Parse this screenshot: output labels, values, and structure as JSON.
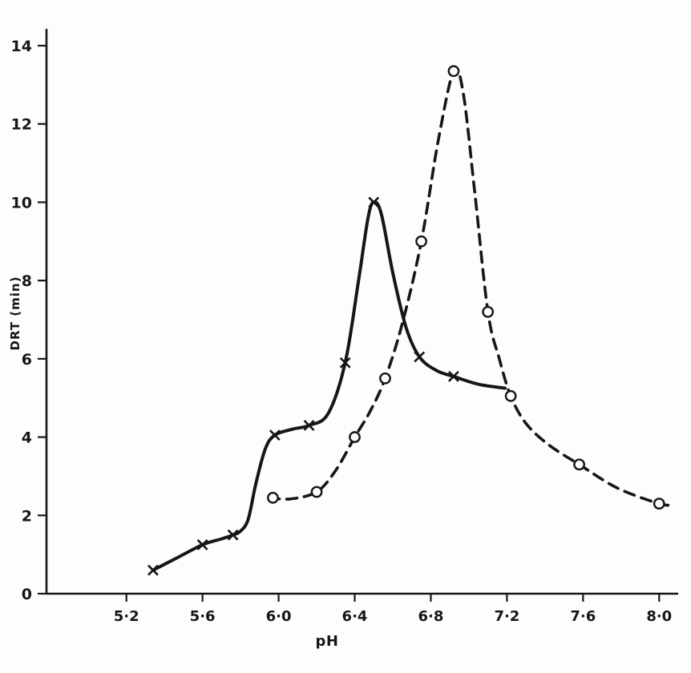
{
  "chart_data": {
    "type": "line",
    "title": "",
    "xlabel": "pH",
    "ylabel": "DRT (min)",
    "xlim": [
      4.78,
      8.1
    ],
    "ylim": [
      0,
      14
    ],
    "grid": false,
    "legend": "none",
    "x_ticks": [
      5.2,
      5.6,
      6.0,
      6.4,
      6.8,
      7.2,
      7.6,
      8.0
    ],
    "x_tick_labels": [
      "5·2",
      "5·6",
      "6·0",
      "6·4",
      "6·8",
      "7·2",
      "7·6",
      "8·0"
    ],
    "y_ticks": [
      0,
      2,
      4,
      6,
      8,
      10,
      12,
      14
    ],
    "y_tick_labels": [
      "0",
      "2",
      "4",
      "6",
      "8",
      "10",
      "12",
      "14"
    ],
    "colors": {
      "ink": "#161616",
      "background": "#fdfdfb"
    },
    "series": [
      {
        "name": "solid-x",
        "marker": "x",
        "line_style": "solid",
        "line_width": 4,
        "points": [
          [
            5.34,
            0.6
          ],
          [
            5.6,
            1.25
          ],
          [
            5.76,
            1.5
          ],
          [
            5.98,
            4.05
          ],
          [
            6.16,
            4.3
          ],
          [
            6.35,
            5.9
          ],
          [
            6.5,
            10.0
          ],
          [
            6.74,
            6.05
          ],
          [
            6.92,
            5.55
          ]
        ],
        "curve": [
          [
            5.34,
            0.6
          ],
          [
            5.46,
            0.9
          ],
          [
            5.6,
            1.25
          ],
          [
            5.7,
            1.4
          ],
          [
            5.76,
            1.5
          ],
          [
            5.8,
            1.6
          ],
          [
            5.84,
            1.9
          ],
          [
            5.88,
            2.8
          ],
          [
            5.93,
            3.7
          ],
          [
            5.98,
            4.05
          ],
          [
            6.07,
            4.2
          ],
          [
            6.16,
            4.3
          ],
          [
            6.26,
            4.6
          ],
          [
            6.35,
            5.9
          ],
          [
            6.42,
            8.0
          ],
          [
            6.47,
            9.6
          ],
          [
            6.5,
            10.0
          ],
          [
            6.54,
            9.7
          ],
          [
            6.6,
            8.2
          ],
          [
            6.67,
            6.8
          ],
          [
            6.74,
            6.05
          ],
          [
            6.83,
            5.7
          ],
          [
            6.92,
            5.55
          ],
          [
            7.05,
            5.35
          ],
          [
            7.19,
            5.25
          ]
        ]
      },
      {
        "name": "dashed-circle",
        "marker": "circle",
        "line_style": "dashed",
        "line_width": 3.6,
        "points": [
          [
            5.97,
            2.45
          ],
          [
            6.2,
            2.6
          ],
          [
            6.4,
            4.0
          ],
          [
            6.56,
            5.5
          ],
          [
            6.75,
            9.0
          ],
          [
            6.92,
            13.35
          ],
          [
            7.1,
            7.2
          ],
          [
            7.22,
            5.05
          ],
          [
            7.58,
            3.3
          ],
          [
            8.0,
            2.3
          ]
        ],
        "curve": [
          [
            5.95,
            2.45
          ],
          [
            6.06,
            2.42
          ],
          [
            6.2,
            2.6
          ],
          [
            6.3,
            3.15
          ],
          [
            6.4,
            4.0
          ],
          [
            6.48,
            4.65
          ],
          [
            6.56,
            5.5
          ],
          [
            6.65,
            6.9
          ],
          [
            6.75,
            9.0
          ],
          [
            6.84,
            11.6
          ],
          [
            6.92,
            13.35
          ],
          [
            6.97,
            12.8
          ],
          [
            7.03,
            10.3
          ],
          [
            7.1,
            7.2
          ],
          [
            7.16,
            6.0
          ],
          [
            7.22,
            5.05
          ],
          [
            7.3,
            4.35
          ],
          [
            7.42,
            3.8
          ],
          [
            7.58,
            3.3
          ],
          [
            7.78,
            2.7
          ],
          [
            8.0,
            2.3
          ],
          [
            8.07,
            2.27
          ]
        ]
      }
    ]
  }
}
